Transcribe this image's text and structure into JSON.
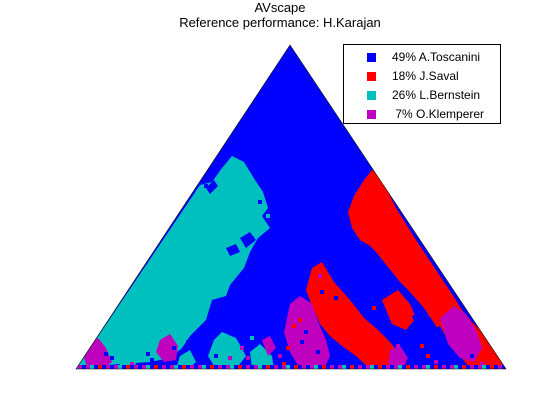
{
  "chart_data": {
    "type": "area",
    "title": "AVscape",
    "subtitle": "Reference performance: H.Karajan",
    "legend_position": "top-right",
    "grid": false,
    "series": [
      {
        "name": "A.Toscanini",
        "percent": 49,
        "label": "49% A.Toscanini",
        "color": "#0000ff"
      },
      {
        "name": "J.Saval",
        "percent": 18,
        "label": "18% J.Saval",
        "color": "#ff0000"
      },
      {
        "name": "L.Bernstein",
        "percent": 26,
        "label": "26% L.Bernstein",
        "color": "#00bfbf"
      },
      {
        "name": "O.Klemperer",
        "percent": 7,
        "label": " 7% O.Klemperer",
        "color": "#bf00bf"
      }
    ]
  }
}
